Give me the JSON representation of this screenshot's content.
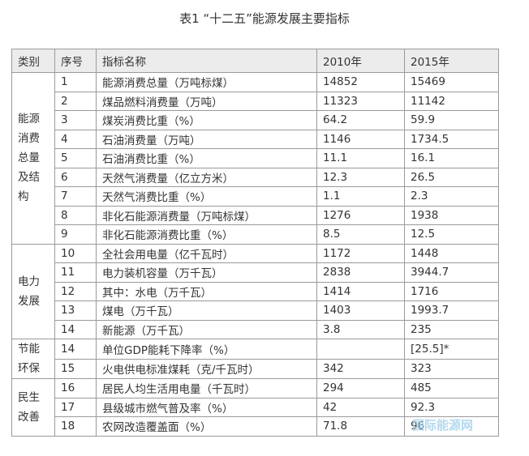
{
  "title": "表1 “十二五”能源发展主要指标",
  "table": {
    "header": [
      "类别",
      "序号",
      "指标名称",
      "2010年",
      "2015年"
    ],
    "groups": [
      {
        "category": "能源消费总量及结构",
        "rows": [
          [
            "1",
            "能源消费总量（万吨标煤）",
            "14852",
            "15469"
          ],
          [
            "2",
            "煤品燃料消费量（万吨）",
            "11323",
            "11142"
          ],
          [
            "3",
            "煤炭消费比重（%）",
            "64.2",
            "59.9"
          ],
          [
            "4",
            "石油消费量（万吨）",
            "1146",
            "1734.5"
          ],
          [
            "5",
            "石油消费比重（%）",
            "11.1",
            "16.1"
          ],
          [
            "6",
            "天然气消费量（亿立方米）",
            "12.3",
            "26.5"
          ],
          [
            "7",
            "天然气消费比重（%）",
            "1.1",
            "2.3"
          ],
          [
            "8",
            "非化石能源消费量（万吨标煤）",
            "1276",
            "1938"
          ],
          [
            "9",
            "非化石能源消费比重（%）",
            "8.5",
            "12.5"
          ]
        ]
      },
      {
        "category": "电力发展",
        "rows": [
          [
            "10",
            "全社会用电量（亿千瓦时）",
            "1172",
            "1448"
          ],
          [
            "11",
            "电力装机容量（万千瓦）",
            "2838",
            "3944.7"
          ],
          [
            "12",
            "其中：水电（万千瓦）",
            "1414",
            "1716"
          ],
          [
            "13",
            "煤电（万千瓦）",
            "1403",
            "1993.7"
          ],
          [
            "14",
            "新能源（万千瓦）",
            "3.8",
            "235"
          ]
        ]
      },
      {
        "category": "节能环保",
        "rows": [
          [
            "14",
            "单位GDP能耗下降率（%）",
            null,
            "[25.5]*"
          ],
          [
            "15",
            "火电供电标准煤耗（克/千瓦时）",
            "342",
            "323"
          ]
        ]
      },
      {
        "category": "民生改善",
        "rows": [
          [
            "16",
            "居民人均生活用电量（千瓦时）",
            "294",
            "485"
          ],
          [
            "17",
            "县级城市燃气普及率（%）",
            "42",
            "92.3"
          ],
          [
            "18",
            "农网改造覆盖面（%）",
            "71.8",
            "96"
          ]
        ]
      }
    ]
  },
  "watermark": "国际能源网"
}
